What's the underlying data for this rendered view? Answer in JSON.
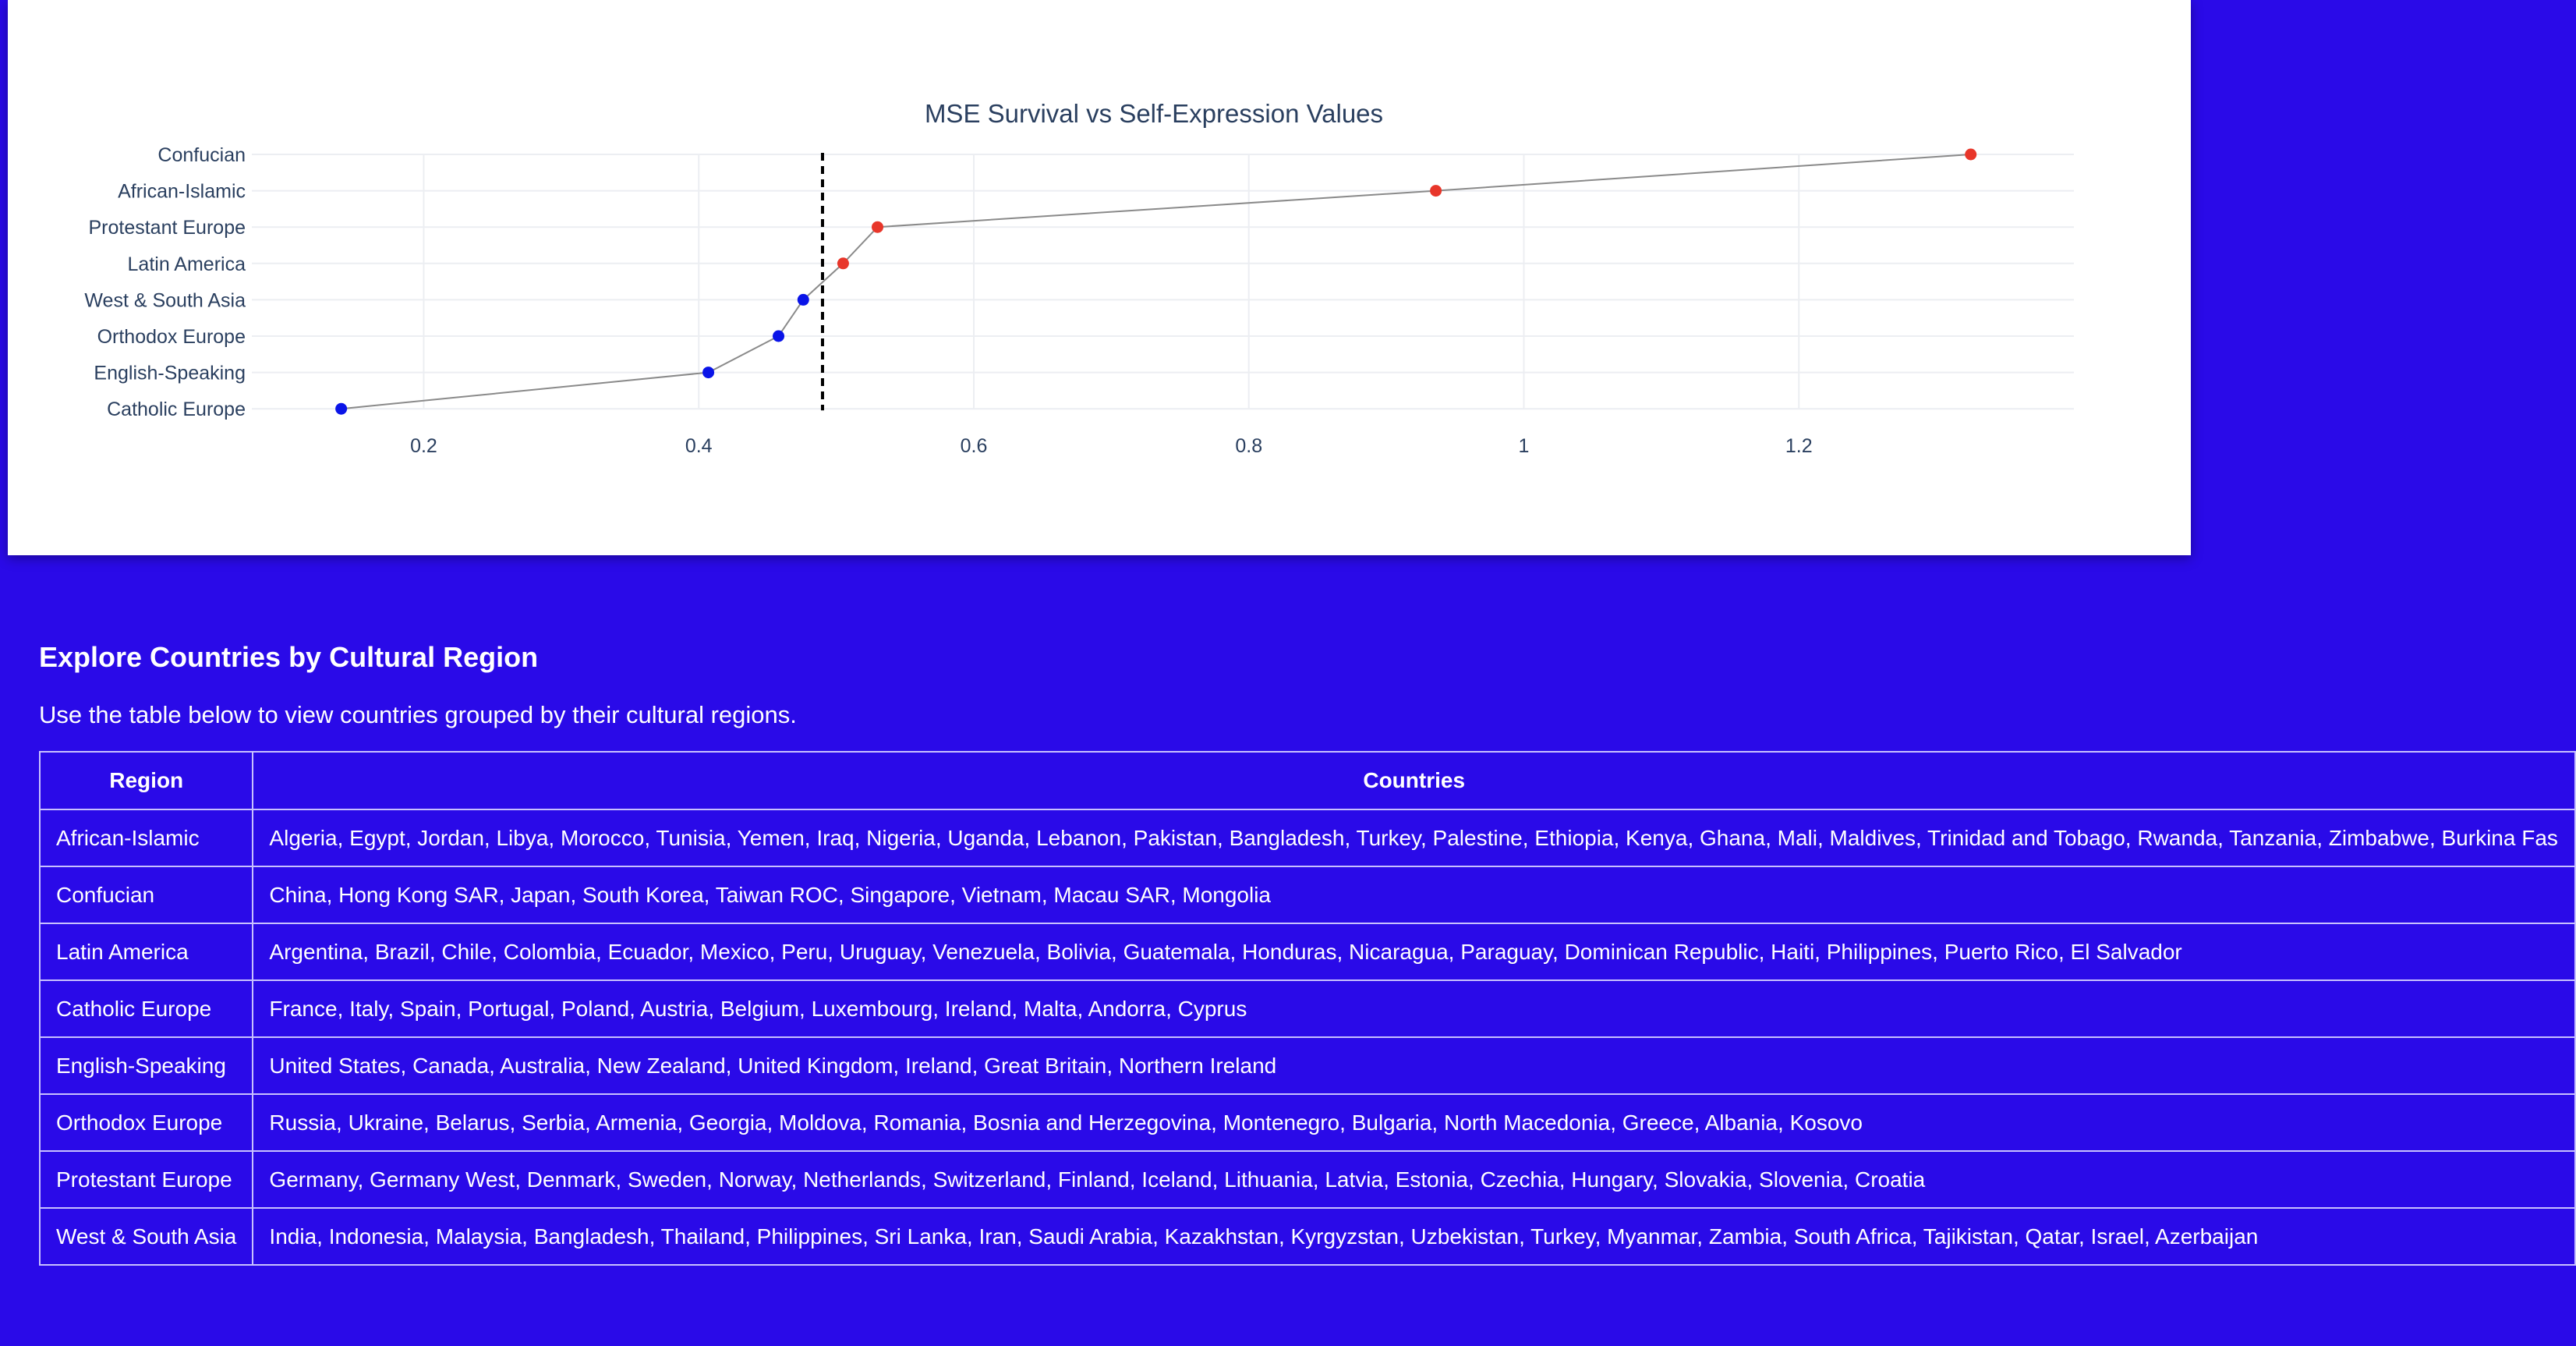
{
  "chart_data": {
    "type": "line",
    "title": "MSE Survival vs Self-Expression Values",
    "categories": [
      "Confucian",
      "African-Islamic",
      "Protestant Europe",
      "Latin America",
      "West & South Asia",
      "Orthodox Europe",
      "English-Speaking",
      "Catholic Europe"
    ],
    "points": [
      {
        "region": "Confucian",
        "value": 1.325,
        "color": "#e8362a"
      },
      {
        "region": "African-Islamic",
        "value": 0.936,
        "color": "#e8362a"
      },
      {
        "region": "Protestant Europe",
        "value": 0.53,
        "color": "#e8362a"
      },
      {
        "region": "Latin America",
        "value": 0.505,
        "color": "#e8362a"
      },
      {
        "region": "West & South Asia",
        "value": 0.476,
        "color": "#0a14e8"
      },
      {
        "region": "Orthodox Europe",
        "value": 0.458,
        "color": "#0a14e8"
      },
      {
        "region": "English-Speaking",
        "value": 0.407,
        "color": "#0a14e8"
      },
      {
        "region": "Catholic Europe",
        "value": 0.14,
        "color": "#0a14e8"
      }
    ],
    "threshold": 0.49,
    "xlim": [
      0.075,
      1.4
    ],
    "xticks": [
      {
        "value": 0.2,
        "label": "0.2"
      },
      {
        "value": 0.4,
        "label": "0.4"
      },
      {
        "value": 0.6,
        "label": "0.6"
      },
      {
        "value": 0.8,
        "label": "0.8"
      },
      {
        "value": 1.0,
        "label": "1"
      },
      {
        "value": 1.2,
        "label": "1.2"
      }
    ],
    "grid": true,
    "legend": "none",
    "colors": {
      "line": "#8a8a8a",
      "grid": "#eceef2",
      "text": "#2a3f5f",
      "threshold": "#000000"
    }
  },
  "section": {
    "title": "Explore Countries by Cultural Region",
    "description": "Use the table below to view countries grouped by their cultural regions."
  },
  "table": {
    "headers": [
      "Region",
      "Countries"
    ],
    "rows": [
      {
        "region": "African-Islamic",
        "countries": "Algeria, Egypt, Jordan, Libya, Morocco, Tunisia, Yemen, Iraq, Nigeria, Uganda, Lebanon, Pakistan, Bangladesh, Turkey, Palestine, Ethiopia, Kenya, Ghana, Mali, Maldives, Trinidad and Tobago, Rwanda, Tanzania, Zimbabwe, Burkina Fas"
      },
      {
        "region": "Confucian",
        "countries": "China, Hong Kong SAR, Japan, South Korea, Taiwan ROC, Singapore, Vietnam, Macau SAR, Mongolia"
      },
      {
        "region": "Latin America",
        "countries": "Argentina, Brazil, Chile, Colombia, Ecuador, Mexico, Peru, Uruguay, Venezuela, Bolivia, Guatemala, Honduras, Nicaragua, Paraguay, Dominican Republic, Haiti, Philippines, Puerto Rico, El Salvador"
      },
      {
        "region": "Catholic Europe",
        "countries": "France, Italy, Spain, Portugal, Poland, Austria, Belgium, Luxembourg, Ireland, Malta, Andorra, Cyprus"
      },
      {
        "region": "English-Speaking",
        "countries": "United States, Canada, Australia, New Zealand, United Kingdom, Ireland, Great Britain, Northern Ireland"
      },
      {
        "region": "Orthodox Europe",
        "countries": "Russia, Ukraine, Belarus, Serbia, Armenia, Georgia, Moldova, Romania, Bosnia and Herzegovina, Montenegro, Bulgaria, North Macedonia, Greece, Albania, Kosovo"
      },
      {
        "region": "Protestant Europe",
        "countries": "Germany, Germany West, Denmark, Sweden, Norway, Netherlands, Switzerland, Finland, Iceland, Lithuania, Latvia, Estonia, Czechia, Hungary, Slovakia, Slovenia, Croatia"
      },
      {
        "region": "West & South Asia",
        "countries": "India, Indonesia, Malaysia, Bangladesh, Thailand, Philippines, Sri Lanka, Iran, Saudi Arabia, Kazakhstan, Kyrgyzstan, Uzbekistan, Turkey, Myanmar, Zambia, South Africa, Tajikistan, Qatar, Israel, Azerbaijan"
      }
    ]
  }
}
